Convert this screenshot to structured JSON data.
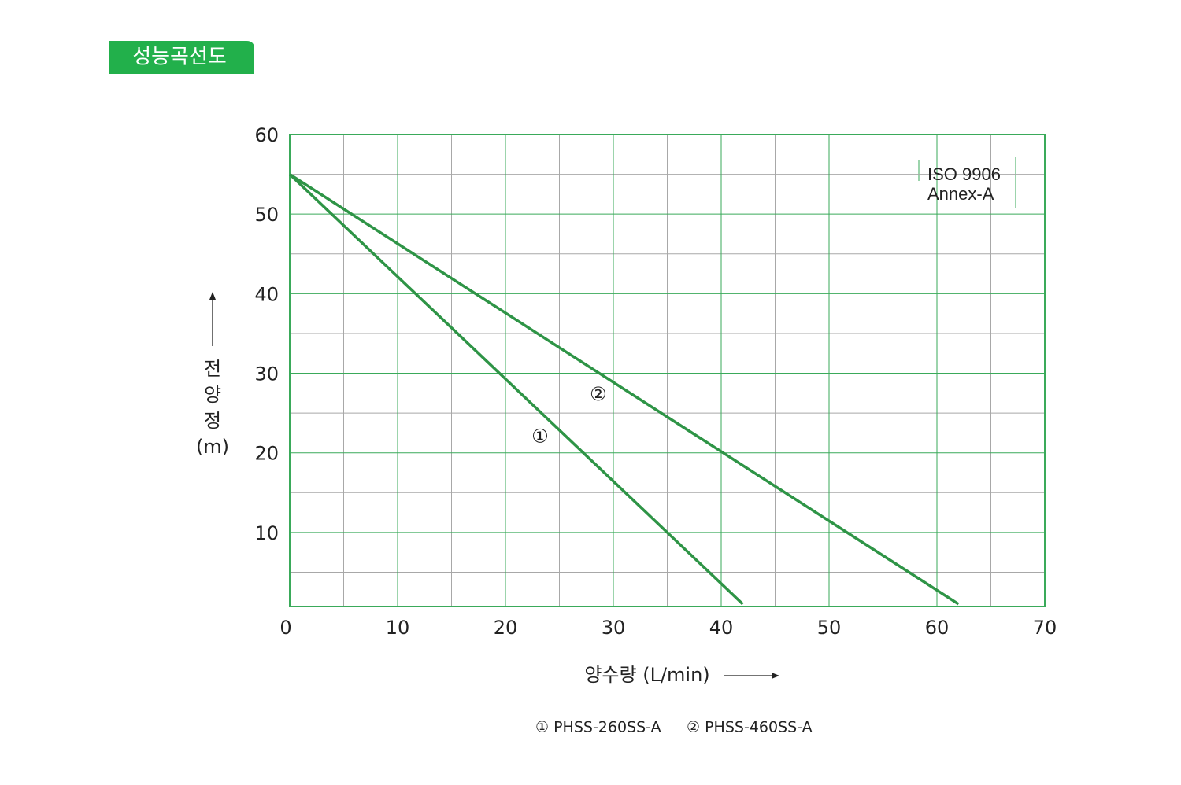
{
  "chart_data": {
    "type": "line",
    "title": "성능곡선도",
    "xlabel": "양수량 (L/min)",
    "ylabel": [
      "전",
      "양",
      "정",
      "(m)"
    ],
    "annotation": [
      "ISO  9906",
      "Annex-A"
    ],
    "xlim": [
      0,
      70
    ],
    "ylim": [
      0.7,
      60
    ],
    "xticks": [
      0,
      10,
      20,
      30,
      40,
      50,
      60,
      70
    ],
    "yticks": [
      10,
      20,
      30,
      40,
      50,
      60
    ],
    "xminor_ticks": [
      5,
      15,
      25,
      35,
      45,
      55,
      65
    ],
    "yminor_ticks": [
      5,
      15,
      25,
      35,
      45,
      55
    ],
    "grid": true,
    "grid_color": "#3aaa5a",
    "minor_grid_color": "#a8a8a8",
    "series": [
      {
        "name": "① PHSS-260SS-A",
        "label": "①",
        "label_at": [
          23.2,
          22
        ],
        "color": "#2e9446",
        "x": [
          0,
          42
        ],
        "values": [
          55,
          1
        ]
      },
      {
        "name": "② PHSS-460SS-A",
        "label": "②",
        "label_at": [
          28.6,
          27.3
        ],
        "color": "#2e9446",
        "x": [
          0,
          62
        ],
        "values": [
          55,
          1
        ]
      }
    ]
  }
}
